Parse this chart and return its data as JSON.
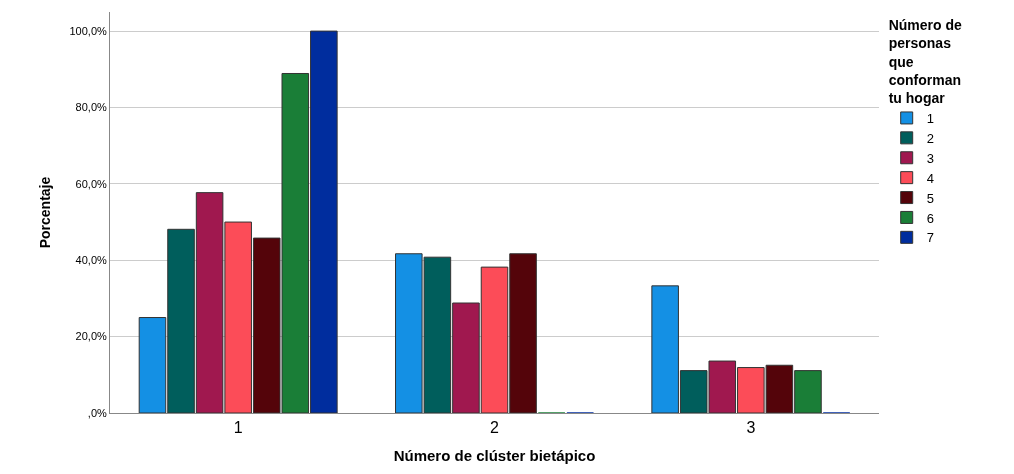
{
  "chart_data": {
    "type": "bar",
    "xlabel": "Número de clúster bietápico",
    "ylabel": "Porcentaje",
    "legend_title": "Número de personas que conforman tu hogar",
    "categories": [
      "1",
      "2",
      "3"
    ],
    "series": [
      {
        "name": "1",
        "color": "#1490e4",
        "values": [
          25.0,
          41.7,
          33.3
        ]
      },
      {
        "name": "2",
        "color": "#005e5c",
        "values": [
          48.1,
          40.8,
          11.1
        ]
      },
      {
        "name": "3",
        "color": "#a0184f",
        "values": [
          57.7,
          28.8,
          13.6
        ]
      },
      {
        "name": "4",
        "color": "#fc4c58",
        "values": [
          50.0,
          38.2,
          11.9
        ]
      },
      {
        "name": "5",
        "color": "#54040a",
        "values": [
          45.8,
          41.7,
          12.5
        ]
      },
      {
        "name": "6",
        "color": "#1a7e37",
        "values": [
          88.9,
          0,
          11.1
        ]
      },
      {
        "name": "7",
        "color": "#002d9e",
        "values": [
          100.0,
          0,
          0
        ]
      }
    ],
    "ylim": [
      0,
      105
    ],
    "yticks": [
      {
        "value": 0,
        "label": ",0%"
      },
      {
        "value": 20,
        "label": "20,0%"
      },
      {
        "value": 40,
        "label": "40,0%"
      },
      {
        "value": 60,
        "label": "60,0%"
      },
      {
        "value": 80,
        "label": "80,0%"
      },
      {
        "value": 100,
        "label": "100,0%"
      }
    ],
    "grid": "y",
    "legend": "top right"
  }
}
